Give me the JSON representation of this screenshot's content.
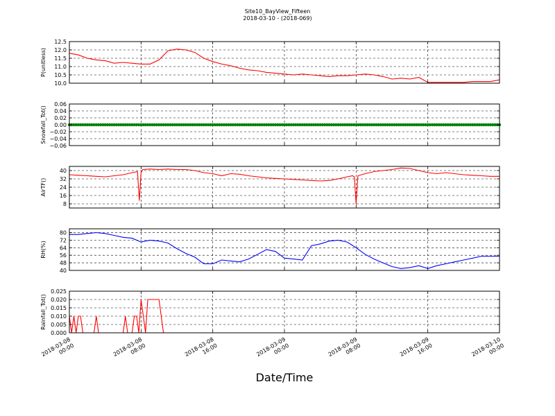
{
  "figure": {
    "title_line1": "Site10_BayView_Fifteen",
    "title_line2": "2018-03-10 - (2018-069)",
    "xlabel": "Date/Time"
  },
  "chart_data": [
    {
      "type": "line",
      "ylabel": "P(unitless)",
      "ylim": [
        10.0,
        12.5
      ],
      "yticks": [
        10.0,
        10.5,
        11.0,
        11.5,
        12.0,
        12.5
      ],
      "ytick_labels": [
        "10.0",
        "10.5",
        "11.0",
        "11.5",
        "12.0",
        "12.5"
      ],
      "xlim": [
        0,
        48
      ],
      "grid": true,
      "series": [
        {
          "color": "#ff0000",
          "x": [
            0,
            1,
            2,
            3,
            4,
            5,
            6,
            7,
            8,
            9,
            10,
            11,
            12,
            13,
            14,
            15,
            16,
            17,
            18,
            19,
            20,
            21,
            22,
            23,
            24,
            25,
            26,
            27,
            28,
            29,
            30,
            31,
            32,
            33,
            34,
            35,
            36,
            37,
            38,
            39,
            40,
            41,
            42,
            43,
            44,
            45,
            46,
            47,
            48
          ],
          "y": [
            11.8,
            11.7,
            11.5,
            11.4,
            11.35,
            11.2,
            11.25,
            11.2,
            11.15,
            11.15,
            11.4,
            11.95,
            12.05,
            12.0,
            11.85,
            11.5,
            11.3,
            11.15,
            11.05,
            10.9,
            10.8,
            10.75,
            10.65,
            10.6,
            10.55,
            10.5,
            10.55,
            10.5,
            10.45,
            10.4,
            10.45,
            10.45,
            10.5,
            10.55,
            10.5,
            10.4,
            10.25,
            10.3,
            10.25,
            10.35,
            10.05,
            10.05,
            10.05,
            10.05,
            10.05,
            10.1,
            10.1,
            10.1,
            10.2
          ]
        }
      ]
    },
    {
      "type": "scatter",
      "ylabel": "Snowfall_Tot()",
      "ylim": [
        -0.06,
        0.06
      ],
      "yticks": [
        -0.06,
        -0.04,
        -0.02,
        0.0,
        0.02,
        0.04,
        0.06
      ],
      "ytick_labels": [
        "−0.06",
        "−0.04",
        "−0.02",
        "0.00",
        "0.02",
        "0.04",
        "0.06"
      ],
      "xlim": [
        0,
        48
      ],
      "grid": true,
      "series": [
        {
          "color": "#008000",
          "x_start": 0,
          "x_end": 48,
          "x_step": 0.25,
          "constant_value": 0.0
        }
      ]
    },
    {
      "type": "line",
      "ylabel": "AirTF()",
      "ylim": [
        4,
        44
      ],
      "yticks": [
        8,
        16,
        24,
        32,
        40
      ],
      "ytick_labels": [
        "8",
        "16",
        "24",
        "32",
        "40"
      ],
      "xlim": [
        0,
        48
      ],
      "grid": true,
      "series": [
        {
          "color": "#ff0000",
          "x": [
            0,
            1,
            2,
            3,
            4,
            5,
            6,
            7,
            7.6,
            7.8,
            8.0,
            8.2,
            9,
            10,
            11,
            12,
            13,
            14,
            15,
            16,
            17,
            18,
            19,
            20,
            21,
            22,
            23,
            24,
            25,
            26,
            27,
            28,
            29,
            30,
            31,
            31.6,
            31.8,
            32.0,
            32.2,
            33,
            34,
            35,
            36,
            37,
            38,
            39,
            40,
            41,
            42,
            43,
            44,
            45,
            46,
            47,
            48
          ],
          "y": [
            36,
            35.5,
            35,
            34.5,
            34,
            35,
            36,
            38,
            39,
            11,
            38,
            41,
            41.5,
            41,
            41.5,
            41,
            41,
            40,
            38,
            37,
            35,
            37,
            36.5,
            35,
            34,
            33,
            32.5,
            32,
            31.5,
            31,
            30.5,
            30,
            30.5,
            32,
            34,
            35,
            34,
            8,
            35,
            37,
            39,
            40,
            41,
            42.5,
            42,
            40,
            38,
            37,
            38,
            37,
            36,
            35.5,
            35,
            34.5,
            34.5
          ]
        }
      ]
    },
    {
      "type": "line",
      "ylabel": "RH(%)",
      "ylim": [
        40,
        84
      ],
      "yticks": [
        40,
        48,
        56,
        64,
        72,
        80
      ],
      "ytick_labels": [
        "40",
        "48",
        "56",
        "64",
        "72",
        "80"
      ],
      "xlim": [
        0,
        48
      ],
      "grid": true,
      "series": [
        {
          "color": "#0000ff",
          "x": [
            0,
            1,
            2,
            3,
            4,
            5,
            6,
            7,
            8,
            9,
            10,
            11,
            12,
            13,
            14,
            15,
            16,
            17,
            18,
            19,
            20,
            21,
            22,
            23,
            24,
            25,
            26,
            27,
            28,
            29,
            30,
            31,
            32,
            33,
            34,
            35,
            36,
            37,
            38,
            39,
            40,
            41,
            42,
            43,
            44,
            45,
            46,
            47,
            48
          ],
          "y": [
            78,
            78,
            79,
            80,
            79,
            77,
            75,
            74,
            70,
            72,
            71,
            69,
            63,
            58,
            54,
            47,
            47,
            51,
            50,
            49,
            52,
            57,
            62,
            60,
            53,
            52,
            51,
            66,
            68,
            71,
            72,
            70,
            64,
            57,
            52,
            48,
            44,
            42,
            43,
            45,
            42,
            45,
            47,
            49,
            51,
            53,
            55,
            55,
            55
          ]
        }
      ]
    },
    {
      "type": "line",
      "ylabel": "Rainfall_Tot()",
      "ylim": [
        0.0,
        0.025
      ],
      "yticks": [
        0.0,
        0.005,
        0.01,
        0.015,
        0.02,
        0.025
      ],
      "ytick_labels": [
        "0.000",
        "0.005",
        "0.010",
        "0.015",
        "0.020",
        "0.025"
      ],
      "xlim": [
        0,
        48
      ],
      "xticks": [
        0,
        8,
        16,
        24,
        32,
        40,
        48
      ],
      "xtick_labels": [
        [
          "2018-03-08",
          "00:00"
        ],
        [
          "2018-03-08",
          "08:00"
        ],
        [
          "2018-03-08",
          "16:00"
        ],
        [
          "2018-03-09",
          "00:00"
        ],
        [
          "2018-03-09",
          "08:00"
        ],
        [
          "2018-03-09",
          "16:00"
        ],
        [
          "2018-03-10",
          "00:00"
        ]
      ],
      "grid": true,
      "series": [
        {
          "color": "#ff0000",
          "x": [
            0,
            0.25,
            0.5,
            0.75,
            1.0,
            1.25,
            1.5,
            2.75,
            3.0,
            3.25,
            6.0,
            6.25,
            6.5,
            7.0,
            7.25,
            7.5,
            7.75,
            8.0,
            8.25,
            8.5,
            8.75,
            9.0,
            9.25,
            9.75,
            10.0,
            10.5,
            48
          ],
          "y": [
            0.01,
            0.0,
            0.01,
            0.0,
            0.01,
            0.01,
            0.0,
            0.0,
            0.01,
            0.0,
            0.0,
            0.01,
            0.0,
            0.0,
            0.01,
            0.01,
            0.0,
            0.02,
            0.01,
            0.0,
            0.02,
            0.02,
            0.02,
            0.02,
            0.02,
            0.0,
            0.0
          ]
        }
      ]
    }
  ]
}
